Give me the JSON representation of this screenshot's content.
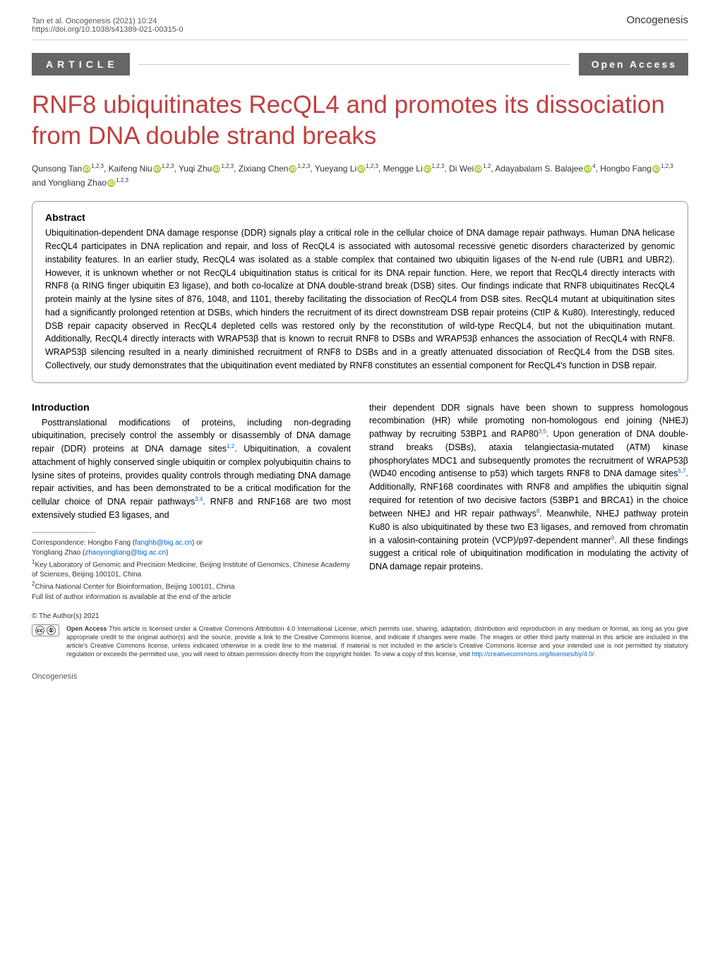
{
  "header": {
    "citation_left": "Tan et al. Oncogenesis           (2021) 10:24",
    "doi": "https://doi.org/10.1038/s41389-021-00315-0",
    "journal": "Oncogenesis"
  },
  "labels": {
    "article": "ARTICLE",
    "open_access": "Open Access"
  },
  "title": "RNF8 ubiquitinates RecQL4 and promotes its dissociation from DNA double strand breaks",
  "authors_html": "Qunsong Tan<span class='orcid'>iD</span><span class='sup'>1,2,3</span>, Kaifeng Niu<span class='orcid'>iD</span><span class='sup'>1,2,3</span>, Yuqi Zhu<span class='orcid'>iD</span><span class='sup'>1,2,3</span>, Zixiang Chen<span class='orcid'>iD</span><span class='sup'>1,2,3</span>, Yueyang Li<span class='orcid'>iD</span><span class='sup'>1,2,3</span>, Mengge Li<span class='orcid'>iD</span><span class='sup'>1,2,3</span>, Di Wei<span class='orcid'>iD</span><span class='sup'>1,2</span>, Adayabalam S. Balajee<span class='orcid'>iD</span><span class='sup'>4</span>, Hongbo Fang<span class='orcid'>iD</span><span class='sup'>1,2,3</span> and Yongliang Zhao<span class='orcid'>iD</span><span class='sup'>1,2,3</span>",
  "abstract": {
    "heading": "Abstract",
    "text": "Ubiquitination-dependent DNA damage response (DDR) signals play a critical role in the cellular choice of DNA damage repair pathways. Human DNA helicase RecQL4 participates in DNA replication and repair, and loss of RecQL4 is associated with autosomal recessive genetic disorders characterized by genomic instability features. In an earlier study, RecQL4 was isolated as a stable complex that contained two ubiquitin ligases of the N-end rule (UBR1 and UBR2). However, it is unknown whether or not RecQL4 ubiquitination status is critical for its DNA repair function. Here, we report that RecQL4 directly interacts with RNF8 (a RING finger ubiquitin E3 ligase), and both co-localize at DNA double-strand break (DSB) sites. Our findings indicate that RNF8 ubiquitinates RecQL4 protein mainly at the lysine sites of 876, 1048, and 1101, thereby facilitating the dissociation of RecQL4 from DSB sites. RecQL4 mutant at ubiquitination sites had a significantly prolonged retention at DSBs, which hinders the recruitment of its direct downstream DSB repair proteins (CtIP & Ku80). Interestingly, reduced DSB repair capacity observed in RecQL4 depleted cells was restored only by the reconstitution of wild-type RecQL4, but not the ubiquitination mutant. Additionally, RecQL4 directly interacts with WRAP53β that is known to recruit RNF8 to DSBs and WRAP53β enhances the association of RecQL4 with RNF8. WRAP53β silencing resulted in a nearly diminished recruitment of RNF8 to DSBs and in a greatly attenuated dissociation of RecQL4 from the DSB sites. Collectively, our study demonstrates that the ubiquitination event mediated by RNF8 constitutes an essential component for RecQL4's function in DSB repair."
  },
  "introduction": {
    "heading": "Introduction",
    "left_html": "<span class='indent'>Posttranslational modifications of proteins, including non-degrading ubiquitination, precisely control the assembly or disassembly of DNA damage repair (DDR) proteins at DNA damage sites<span class='sup ref-link'>1,2</span>. Ubiquitination, a covalent attachment of highly conserved single ubiquitin or complex polyubiquitin chains to lysine sites of proteins, provides quality controls through mediating DNA damage repair activities, and has been demonstrated to be a critical modification for the cellular choice of DNA repair pathways<span class='sup ref-link'>3,4</span>. RNF8 and RNF168 are two most extensively studied E3 ligases, and</span>",
    "right_html": "their dependent DDR signals have been shown to suppress homologous recombination (HR) while promoting non-homologous end joining (NHEJ) pathway by recruiting 53BP1 and RAP80<span class='sup ref-link'>3,5</span>. Upon generation of DNA double-strand breaks (DSBs), ataxia telangiectasia-mutated (ATM) kinase phosphorylates MDC1 and subsequently promotes the recruitment of WRAP53β (WD40 encoding antisense to p53) which targets RNF8 to DNA damage sites<span class='sup ref-link'>6,7</span>. Additionally, RNF168 coordinates with RNF8 and amplifies the ubiquitin signal required for retention of two decisive factors (53BP1 and BRCA1) in the choice between NHEJ and HR repair pathways<span class='sup ref-link'>8</span>. Meanwhile, NHEJ pathway protein Ku80 is also ubiquitinated by these two E3 ligases, and removed from chromatin in a valosin-containing protein (VCP)/p97-dependent manner<span class='sup ref-link'>9</span>. All these findings suggest a critical role of ubiquitination modification in modulating the activity of DNA damage repair proteins."
  },
  "footnotes": {
    "correspondence": "Correspondence: Hongbo Fang (<span class='email'>fanghb@big.ac.cn</span>) or",
    "correspondence2": "Yongliang Zhao (<span class='email'>zhaoyongliang@big.ac.cn</span>)",
    "aff1": "<span class='sup'>1</span>Key Laboratory of Genomic and Precision Medicine, Beijing Institute of Genomics, Chinese Academy of Sciences, Beijing 100101, China",
    "aff2": "<span class='sup'>2</span>China National Center for Bioinformation, Beijing 100101, China",
    "fulllist": "Full list of author information is available at the end of the article"
  },
  "copyright_line": "© The Author(s) 2021",
  "license": {
    "bold": "Open Access",
    "text": " This article is licensed under a Creative Commons Attribution 4.0 International License, which permits use, sharing, adaptation, distribution and reproduction in any medium or format, as long as you give appropriate credit to the original author(s) and the source, provide a link to the Creative Commons license, and indicate if changes were made. The images or other third party material in this article are included in the article's Creative Commons license, unless indicated otherwise in a credit line to the material. If material is not included in the article's Creative Commons license and your intended use is not permitted by statutory regulation or exceeds the permitted use, you will need to obtain permission directly from the copyright holder. To view a copy of this license, visit <span class='email'>http://creativecommons.org/licenses/by/4.0/</span>."
  },
  "footer": {
    "left": "Oncogenesis"
  },
  "colors": {
    "title_color": "#c04040",
    "label_bg": "#666666",
    "link_color": "#0066cc",
    "orcid_bg": "#a6ce39"
  }
}
